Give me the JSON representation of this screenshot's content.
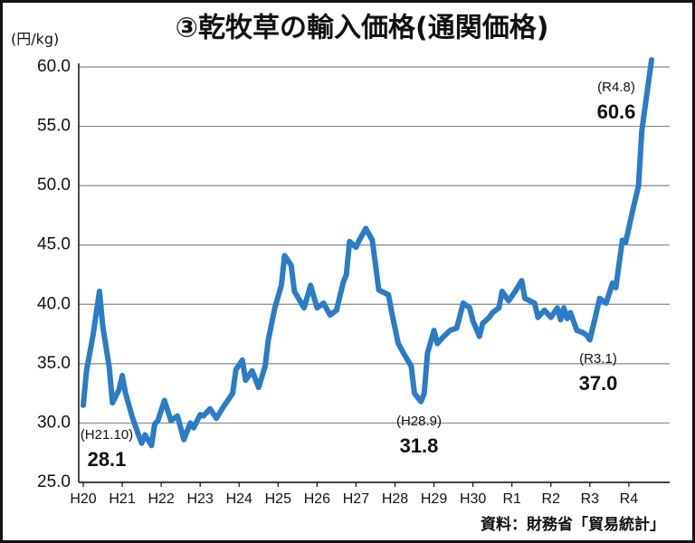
{
  "chart_data": {
    "type": "line",
    "title": "③乾牧草の輸入価格(通関価格)",
    "y_label": "(円/kg)",
    "source": "資料：財務省「貿易統計」",
    "xlim": [
      0,
      175
    ],
    "xticks": [
      {
        "value": 0,
        "label": "H20"
      },
      {
        "value": 12,
        "label": "H21"
      },
      {
        "value": 24,
        "label": "H22"
      },
      {
        "value": 36,
        "label": "H23"
      },
      {
        "value": 48,
        "label": "H24"
      },
      {
        "value": 60,
        "label": "H25"
      },
      {
        "value": 72,
        "label": "H26"
      },
      {
        "value": 84,
        "label": "H27"
      },
      {
        "value": 96,
        "label": "H28"
      },
      {
        "value": 108,
        "label": "H29"
      },
      {
        "value": 120,
        "label": "H30"
      },
      {
        "value": 132,
        "label": "R1"
      },
      {
        "value": 144,
        "label": "R2"
      },
      {
        "value": 156,
        "label": "R3"
      },
      {
        "value": 168,
        "label": "R4"
      }
    ],
    "ylim": [
      25,
      60
    ],
    "yticks": [
      {
        "value": 25,
        "label": "25.0"
      },
      {
        "value": 30,
        "label": "30.0"
      },
      {
        "value": 35,
        "label": "35.0"
      },
      {
        "value": 40,
        "label": "40.0"
      },
      {
        "value": 45,
        "label": "45.0"
      },
      {
        "value": 50,
        "label": "50.0"
      },
      {
        "value": 55,
        "label": "55.0"
      },
      {
        "value": 60,
        "label": "60.0"
      }
    ],
    "grid": true,
    "x": [
      0,
      1,
      3,
      5,
      6,
      8,
      9,
      11,
      12,
      13,
      15,
      17,
      18,
      19,
      21,
      22,
      23,
      25,
      27,
      29,
      31,
      33,
      34,
      36,
      37,
      39,
      41,
      43,
      46,
      47,
      49,
      50,
      52,
      54,
      56,
      57,
      59,
      61,
      62,
      64,
      65,
      68,
      70,
      72,
      74,
      76,
      78,
      80,
      81,
      82,
      84,
      85,
      87,
      89,
      91,
      94,
      95,
      97,
      99,
      101,
      102,
      104,
      105,
      106,
      108,
      109,
      111,
      113,
      115,
      117,
      119,
      120,
      122,
      123,
      125,
      126,
      128,
      129,
      131,
      133,
      135,
      136,
      139,
      140,
      142,
      144,
      146,
      147,
      148,
      149,
      150,
      152,
      154,
      155,
      156,
      158,
      159,
      161,
      163,
      164,
      166,
      167,
      169,
      171,
      172,
      175
    ],
    "series": [
      {
        "color": "#2b7bc6",
        "values": [
          31.5,
          34.4,
          37.4,
          41.1,
          38.2,
          34.7,
          31.7,
          32.8,
          34.0,
          32.5,
          30.6,
          29.0,
          28.3,
          29.0,
          28.1,
          29.9,
          30.2,
          31.9,
          30.2,
          30.6,
          28.6,
          30.0,
          29.6,
          30.7,
          30.6,
          31.2,
          30.4,
          31.3,
          32.5,
          34.5,
          35.3,
          33.6,
          34.4,
          33.0,
          34.8,
          37.0,
          39.7,
          41.6,
          44.1,
          43.3,
          41.1,
          39.7,
          41.6,
          39.7,
          40.1,
          39.1,
          39.5,
          41.8,
          42.5,
          45.3,
          44.8,
          45.4,
          46.4,
          45.4,
          41.2,
          40.8,
          39.3,
          36.7,
          35.7,
          34.8,
          32.5,
          31.8,
          32.5,
          35.9,
          37.8,
          36.7,
          37.3,
          37.8,
          38.0,
          40.1,
          39.7,
          38.6,
          37.3,
          38.4,
          38.9,
          39.3,
          39.7,
          41.1,
          40.3,
          41.1,
          42.0,
          40.5,
          40.1,
          38.9,
          39.5,
          38.9,
          39.7,
          38.7,
          39.7,
          38.8,
          39.3,
          37.8,
          37.6,
          37.4,
          37.0,
          39.3,
          40.5,
          40.1,
          41.8,
          41.4,
          45.4,
          45.2,
          47.7,
          50.0,
          54.6,
          60.6
        ]
      }
    ],
    "annotations": [
      {
        "label": "(H21.10)",
        "value_label": "28.1"
      },
      {
        "label": "(H28.9)",
        "value_label": "31.8"
      },
      {
        "label": "(R3.1)",
        "value_label": "37.0"
      },
      {
        "label": "(R4.8)",
        "value_label": "60.6"
      }
    ]
  }
}
